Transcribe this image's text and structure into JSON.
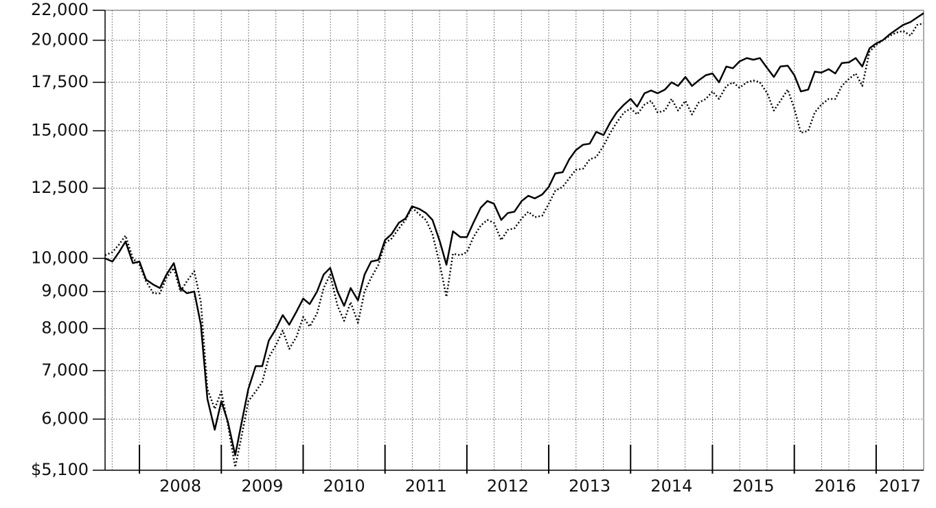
{
  "chart_data": {
    "type": "line",
    "log_scale": true,
    "grid": true,
    "x": [
      2007.58,
      2007.67,
      2007.75,
      2007.83,
      2007.92,
      2008.0,
      2008.08,
      2008.17,
      2008.25,
      2008.33,
      2008.42,
      2008.5,
      2008.58,
      2008.67,
      2008.75,
      2008.83,
      2008.92,
      2009.0,
      2009.08,
      2009.17,
      2009.25,
      2009.33,
      2009.42,
      2009.5,
      2009.58,
      2009.67,
      2009.75,
      2009.83,
      2009.92,
      2010.0,
      2010.08,
      2010.17,
      2010.25,
      2010.33,
      2010.42,
      2010.5,
      2010.58,
      2010.67,
      2010.75,
      2010.83,
      2010.92,
      2011.0,
      2011.08,
      2011.17,
      2011.25,
      2011.33,
      2011.42,
      2011.5,
      2011.58,
      2011.67,
      2011.75,
      2011.83,
      2011.92,
      2012.0,
      2012.08,
      2012.17,
      2012.25,
      2012.33,
      2012.42,
      2012.5,
      2012.58,
      2012.67,
      2012.75,
      2012.83,
      2012.92,
      2013.0,
      2013.08,
      2013.17,
      2013.25,
      2013.33,
      2013.42,
      2013.5,
      2013.58,
      2013.67,
      2013.75,
      2013.83,
      2013.92,
      2014.0,
      2014.08,
      2014.17,
      2014.25,
      2014.33,
      2014.42,
      2014.5,
      2014.58,
      2014.67,
      2014.75,
      2014.83,
      2014.92,
      2015.0,
      2015.08,
      2015.17,
      2015.25,
      2015.33,
      2015.42,
      2015.5,
      2015.58,
      2015.67,
      2015.75,
      2015.83,
      2015.92,
      2016.0,
      2016.08,
      2016.17,
      2016.25,
      2016.33,
      2016.42,
      2016.5,
      2016.58,
      2016.67,
      2016.75,
      2016.83,
      2016.92,
      2017.0,
      2017.08,
      2017.17,
      2017.25,
      2017.33,
      2017.42,
      2017.5,
      2017.58
    ],
    "series": [
      {
        "color": "#000000",
        "style": "solid",
        "values": [
          10000,
          9900,
          10200,
          10550,
          9850,
          9900,
          9350,
          9200,
          9100,
          9500,
          9850,
          9100,
          8950,
          9000,
          8100,
          6400,
          5800,
          6350,
          5950,
          5350,
          5950,
          6600,
          7100,
          7100,
          7700,
          8000,
          8350,
          8100,
          8450,
          8800,
          8650,
          9000,
          9500,
          9700,
          9000,
          8600,
          9100,
          8750,
          9500,
          9900,
          9950,
          10600,
          10800,
          11200,
          11350,
          11800,
          11700,
          11550,
          11300,
          10550,
          9800,
          10900,
          10700,
          10700,
          11200,
          11750,
          12000,
          11900,
          11300,
          11550,
          11600,
          12000,
          12200,
          12100,
          12250,
          12550,
          13100,
          13150,
          13700,
          14100,
          14350,
          14400,
          14950,
          14800,
          15400,
          15900,
          16300,
          16600,
          16200,
          16900,
          17050,
          16900,
          17100,
          17500,
          17300,
          17800,
          17300,
          17600,
          17900,
          18000,
          17500,
          18400,
          18300,
          18700,
          18900,
          18800,
          18900,
          18300,
          17800,
          18400,
          18450,
          17900,
          17000,
          17100,
          18100,
          18050,
          18250,
          18000,
          18600,
          18650,
          18900,
          18400,
          19500,
          19800,
          20000,
          20400,
          20700,
          21000,
          21200,
          21500,
          21800
        ]
      },
      {
        "color": "#000000",
        "style": "dotted",
        "values": [
          10100,
          10200,
          10450,
          10750,
          10000,
          9800,
          9300,
          8950,
          8950,
          9400,
          9700,
          9000,
          9300,
          9600,
          8700,
          6600,
          6200,
          6550,
          5900,
          5150,
          5700,
          6350,
          6550,
          6750,
          7300,
          7600,
          7950,
          7500,
          7800,
          8300,
          8050,
          8400,
          9100,
          9500,
          8600,
          8200,
          8700,
          8150,
          9000,
          9400,
          9800,
          10500,
          10650,
          11000,
          11300,
          11750,
          11500,
          11300,
          10800,
          9800,
          8850,
          10150,
          10100,
          10200,
          10700,
          11100,
          11300,
          11200,
          10600,
          10950,
          11000,
          11350,
          11600,
          11400,
          11450,
          11900,
          12400,
          12550,
          12900,
          13250,
          13300,
          13700,
          13800,
          14300,
          14900,
          15400,
          15900,
          16100,
          15800,
          16300,
          16500,
          15900,
          16000,
          16600,
          16000,
          16500,
          15800,
          16400,
          16600,
          17000,
          16600,
          17300,
          17500,
          17200,
          17500,
          17600,
          17500,
          16900,
          16000,
          16500,
          17100,
          16100,
          14900,
          15000,
          15900,
          16300,
          16600,
          16600,
          17300,
          17700,
          18000,
          17300,
          19300,
          19700,
          20000,
          20300,
          20500,
          20600,
          20300,
          21000,
          21100
        ]
      }
    ],
    "xlim": [
      2007.58,
      2017.58
    ],
    "xticks": [
      2008,
      2009,
      2010,
      2011,
      2012,
      2013,
      2014,
      2015,
      2016,
      2017
    ],
    "ylim": [
      5100,
      22000
    ],
    "yticks": [
      {
        "value": 5100,
        "label": "$5,100"
      },
      {
        "value": 6000,
        "label": "6,000"
      },
      {
        "value": 7000,
        "label": "7,000"
      },
      {
        "value": 8000,
        "label": "8,000"
      },
      {
        "value": 9000,
        "label": "9,000"
      },
      {
        "value": 10000,
        "label": "10,000"
      },
      {
        "value": 12500,
        "label": "12,500"
      },
      {
        "value": 15000,
        "label": "15,000"
      },
      {
        "value": 17500,
        "label": "17,500"
      },
      {
        "value": 20000,
        "label": "20,000"
      },
      {
        "value": 22000,
        "label": "22,000"
      }
    ]
  }
}
